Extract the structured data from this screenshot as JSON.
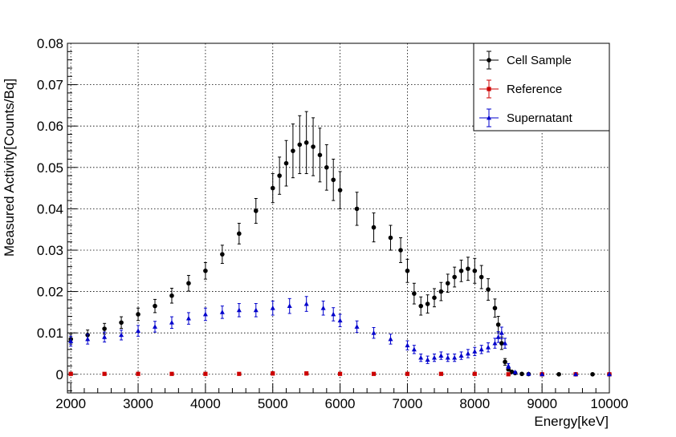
{
  "chart_data": {
    "type": "scatter",
    "xlabel": "Energy[keV]",
    "ylabel": "Measured Activity[Counts/Bq]",
    "xlim": [
      1950,
      10000
    ],
    "ylim": [
      -0.0045,
      0.08
    ],
    "x_ticks": [
      {
        "v": 2000,
        "label": "2000"
      },
      {
        "v": 3000,
        "label": "3000"
      },
      {
        "v": 4000,
        "label": "4000"
      },
      {
        "v": 5000,
        "label": "5000"
      },
      {
        "v": 6000,
        "label": "6000"
      },
      {
        "v": 7000,
        "label": "7000"
      },
      {
        "v": 8000,
        "label": "8000"
      },
      {
        "v": 9000,
        "label": "9000"
      },
      {
        "v": 10000,
        "label": "10000"
      }
    ],
    "y_ticks": [
      {
        "v": 0,
        "label": "0"
      },
      {
        "v": 0.01,
        "label": "0.01"
      },
      {
        "v": 0.02,
        "label": "0.02"
      },
      {
        "v": 0.03,
        "label": "0.03"
      },
      {
        "v": 0.04,
        "label": "0.04"
      },
      {
        "v": 0.05,
        "label": "0.05"
      },
      {
        "v": 0.06,
        "label": "0.06"
      },
      {
        "v": 0.07,
        "label": "0.07"
      },
      {
        "v": 0.08,
        "label": "0.08"
      }
    ],
    "grid": true,
    "legend_position": "top-right",
    "series": [
      {
        "name": "Cell Sample",
        "color": "#000000",
        "marker": "circle",
        "x": [
          2000,
          2250,
          2500,
          2750,
          3000,
          3250,
          3500,
          3750,
          4000,
          4250,
          4500,
          4750,
          5000,
          5100,
          5200,
          5300,
          5400,
          5500,
          5600,
          5700,
          5800,
          5900,
          6000,
          6250,
          6500,
          6750,
          6900,
          7000,
          7100,
          7200,
          7300,
          7400,
          7500,
          7600,
          7700,
          7800,
          7900,
          8000,
          8100,
          8200,
          8300,
          8350,
          8400,
          8450,
          8500,
          8550,
          8600,
          8700,
          8800,
          9000,
          9250,
          9500,
          9750,
          10000
        ],
        "y": [
          0.0085,
          0.0095,
          0.011,
          0.0125,
          0.0145,
          0.0165,
          0.019,
          0.022,
          0.025,
          0.029,
          0.034,
          0.0395,
          0.045,
          0.048,
          0.051,
          0.054,
          0.0555,
          0.056,
          0.055,
          0.053,
          0.05,
          0.047,
          0.0445,
          0.04,
          0.0355,
          0.033,
          0.03,
          0.025,
          0.0195,
          0.0165,
          0.017,
          0.0185,
          0.02,
          0.022,
          0.0235,
          0.025,
          0.0255,
          0.025,
          0.0235,
          0.0205,
          0.016,
          0.012,
          0.0075,
          0.003,
          0.0012,
          0.0006,
          0.0003,
          0.0001,
          5e-05,
          0.0,
          0.0,
          0.0,
          0.0,
          0.0
        ],
        "err": [
          0.0012,
          0.0012,
          0.0013,
          0.0014,
          0.0015,
          0.0016,
          0.0018,
          0.0019,
          0.002,
          0.0022,
          0.0025,
          0.003,
          0.0035,
          0.0045,
          0.0055,
          0.0065,
          0.007,
          0.0075,
          0.007,
          0.0065,
          0.0055,
          0.005,
          0.0045,
          0.004,
          0.0035,
          0.003,
          0.003,
          0.0028,
          0.0025,
          0.0022,
          0.0022,
          0.0022,
          0.0022,
          0.0022,
          0.0024,
          0.0026,
          0.0028,
          0.003,
          0.0028,
          0.0026,
          0.0022,
          0.002,
          0.0015,
          0.0008,
          0.0004,
          0.0002,
          0.0001,
          0.0,
          0.0,
          0.0,
          0.0,
          0.0,
          0.0,
          0.0
        ]
      },
      {
        "name": "Reference",
        "color": "#cc0000",
        "marker": "square",
        "x": [
          2000,
          2500,
          3000,
          3500,
          4000,
          4500,
          5000,
          5500,
          6000,
          6500,
          7000,
          7500,
          8000,
          8500,
          9000,
          9500,
          10000
        ],
        "y": [
          0.0001,
          0.0001,
          0.0001,
          0.0001,
          0.0001,
          0.0001,
          0.0002,
          0.0002,
          0.0001,
          0.0001,
          0.0001,
          0.0001,
          0.0001,
          0.0,
          0.0,
          0.0,
          0.0
        ],
        "err": [
          0.0003,
          0.0003,
          0.0003,
          0.0003,
          0.0003,
          0.0003,
          0.0004,
          0.0004,
          0.0003,
          0.0003,
          0.0003,
          0.0003,
          0.0003,
          0.0002,
          0.0001,
          0.0001,
          0.0001
        ]
      },
      {
        "name": "Supernatant",
        "color": "#0000cc",
        "marker": "triangle",
        "x": [
          2000,
          2250,
          2500,
          2750,
          3000,
          3250,
          3500,
          3750,
          4000,
          4250,
          4500,
          4750,
          5000,
          5250,
          5500,
          5750,
          5900,
          6000,
          6250,
          6500,
          6750,
          7000,
          7100,
          7200,
          7300,
          7400,
          7500,
          7600,
          7700,
          7800,
          7900,
          8000,
          8100,
          8200,
          8300,
          8350,
          8400,
          8450,
          8500,
          8600,
          8800,
          9000,
          9500,
          10000
        ],
        "y": [
          0.008,
          0.0085,
          0.009,
          0.0095,
          0.0105,
          0.0115,
          0.0125,
          0.0135,
          0.0145,
          0.015,
          0.0155,
          0.0155,
          0.016,
          0.0165,
          0.017,
          0.016,
          0.0145,
          0.013,
          0.0115,
          0.01,
          0.0085,
          0.007,
          0.006,
          0.004,
          0.0035,
          0.004,
          0.0045,
          0.004,
          0.004,
          0.0045,
          0.005,
          0.0055,
          0.006,
          0.0065,
          0.0075,
          0.009,
          0.01,
          0.0075,
          0.002,
          0.0005,
          0.0001,
          0.0,
          0.0,
          0.0
        ],
        "err": [
          0.0012,
          0.0012,
          0.0012,
          0.0012,
          0.0013,
          0.0013,
          0.0014,
          0.0014,
          0.0015,
          0.0015,
          0.0016,
          0.0016,
          0.0017,
          0.0018,
          0.0018,
          0.0017,
          0.0016,
          0.0015,
          0.0014,
          0.0013,
          0.0012,
          0.0011,
          0.001,
          0.0009,
          0.0009,
          0.0009,
          0.0009,
          0.0009,
          0.0009,
          0.0009,
          0.001,
          0.001,
          0.001,
          0.0011,
          0.0012,
          0.0013,
          0.0014,
          0.0012,
          0.0006,
          0.0002,
          0.0001,
          0.0,
          0.0,
          0.0
        ]
      }
    ]
  }
}
